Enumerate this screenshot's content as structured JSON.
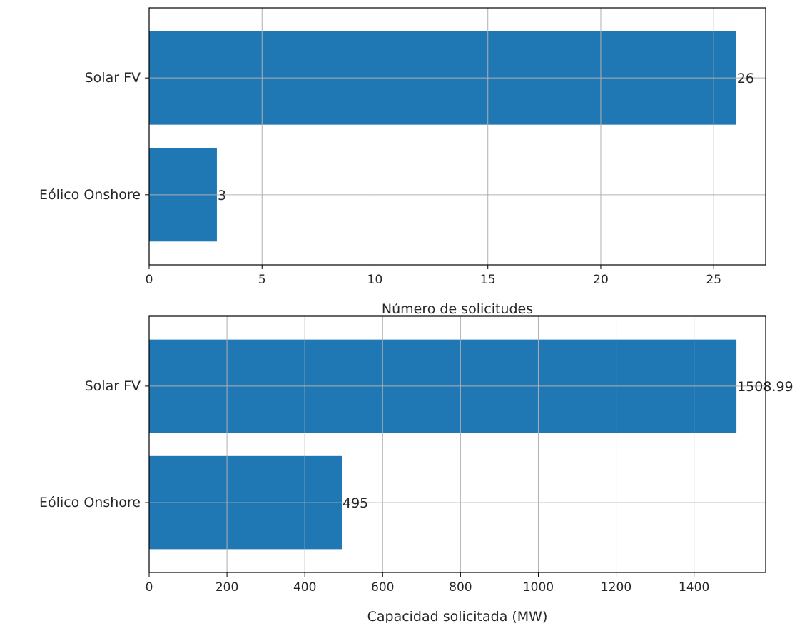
{
  "chart_data": [
    {
      "type": "bar",
      "orientation": "horizontal",
      "categories": [
        "Solar FV",
        "Eólico Onshore"
      ],
      "values": [
        26,
        3
      ],
      "data_labels": [
        "26",
        "3"
      ],
      "title": "",
      "xlabel": "Número de solicitudes",
      "ylabel": "",
      "xlim": [
        0,
        27.3
      ],
      "xticks": [
        0,
        5,
        10,
        15,
        20,
        25
      ],
      "grid": true,
      "bar_color": "#1f77b4"
    },
    {
      "type": "bar",
      "orientation": "horizontal",
      "categories": [
        "Solar FV",
        "Eólico Onshore"
      ],
      "values": [
        1508.99,
        495
      ],
      "data_labels": [
        "1508.99",
        "495"
      ],
      "title": "",
      "xlabel": "Capacidad solicitada (MW)",
      "ylabel": "",
      "xlim": [
        0,
        1584
      ],
      "xticks": [
        0,
        200,
        400,
        600,
        800,
        1000,
        1200,
        1400
      ],
      "grid": true,
      "bar_color": "#1f77b4"
    }
  ]
}
